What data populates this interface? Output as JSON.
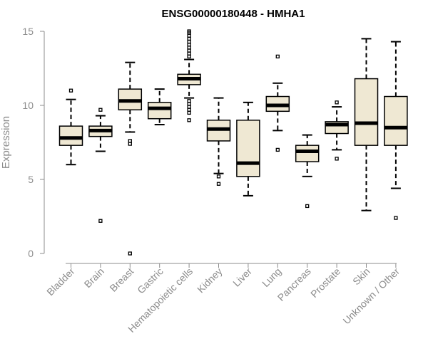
{
  "chart_data": {
    "type": "boxplot",
    "title": "ENSG00000180448 - HMHA1",
    "xlabel": "",
    "ylabel": "Expression",
    "ylim": [
      0,
      15
    ],
    "yticks": [
      0,
      5,
      10,
      15
    ],
    "categories": [
      "Bladder",
      "Brain",
      "Breast",
      "Gastric",
      "Hematopoietic cells",
      "Kidney",
      "Liver",
      "Lung",
      "Pancreas",
      "Prostate",
      "Skin",
      "Unknown / Other"
    ],
    "boxes": [
      {
        "name": "Bladder",
        "min": 6.0,
        "q1": 7.3,
        "median": 7.8,
        "q3": 8.6,
        "max": 10.4,
        "outliers": [
          11.0
        ]
      },
      {
        "name": "Brain",
        "min": 6.9,
        "q1": 7.9,
        "median": 8.3,
        "q3": 8.6,
        "max": 9.3,
        "outliers": [
          9.7,
          2.2
        ]
      },
      {
        "name": "Breast",
        "min": 8.2,
        "q1": 9.7,
        "median": 10.3,
        "q3": 11.1,
        "max": 12.9,
        "outliers": [
          7.6,
          7.4,
          0.0
        ]
      },
      {
        "name": "Gastric",
        "min": 8.7,
        "q1": 9.1,
        "median": 9.8,
        "q3": 10.2,
        "max": 11.1,
        "outliers": []
      },
      {
        "name": "Hematopoietic cells",
        "min": 10.5,
        "q1": 11.4,
        "median": 11.8,
        "q3": 12.1,
        "max": 13.1,
        "outliers": [
          13.3,
          13.5,
          13.7,
          13.9,
          14.1,
          14.3,
          14.5,
          14.7,
          14.9,
          15.0,
          10.3,
          10.1,
          9.9,
          9.7,
          9.5,
          9.0
        ]
      },
      {
        "name": "Kidney",
        "min": 5.4,
        "q1": 7.6,
        "median": 8.4,
        "q3": 9.0,
        "max": 10.5,
        "outliers": [
          5.2,
          4.7
        ]
      },
      {
        "name": "Liver",
        "min": 3.9,
        "q1": 5.2,
        "median": 6.1,
        "q3": 9.0,
        "max": 10.2,
        "outliers": []
      },
      {
        "name": "Lung",
        "min": 8.3,
        "q1": 9.6,
        "median": 10.0,
        "q3": 10.6,
        "max": 11.5,
        "outliers": [
          13.3,
          7.0
        ]
      },
      {
        "name": "Pancreas",
        "min": 5.2,
        "q1": 6.2,
        "median": 6.9,
        "q3": 7.3,
        "max": 8.0,
        "outliers": [
          3.2
        ]
      },
      {
        "name": "Prostate",
        "min": 7.0,
        "q1": 8.1,
        "median": 8.7,
        "q3": 8.9,
        "max": 9.9,
        "outliers": [
          10.2,
          6.4
        ]
      },
      {
        "name": "Skin",
        "min": 2.9,
        "q1": 7.3,
        "median": 8.8,
        "q3": 11.8,
        "max": 14.5,
        "outliers": []
      },
      {
        "name": "Unknown / Other",
        "min": 4.4,
        "q1": 7.3,
        "median": 8.5,
        "q3": 10.6,
        "max": 14.3,
        "outliers": [
          2.4
        ]
      }
    ]
  }
}
